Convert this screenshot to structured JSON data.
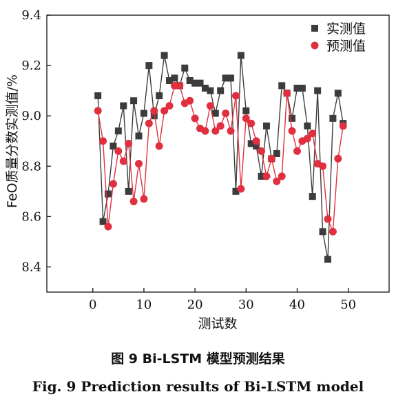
{
  "chart_data": {
    "type": "line",
    "xlabel": "测试数",
    "ylabel": "FeO质量分数实测值/%",
    "xlim": [
      -9,
      58
    ],
    "ylim": [
      8.3,
      9.4
    ],
    "xticks": [
      0,
      10,
      20,
      30,
      40,
      50
    ],
    "yticks": [
      8.4,
      8.6,
      8.8,
      9.0,
      9.2,
      9.4
    ],
    "ytick_labels": [
      "8.4",
      "8.6",
      "8.8",
      "9.0",
      "9.2",
      "9.4"
    ],
    "grid": false,
    "legend_position": "top-right",
    "series": [
      {
        "name": "实测值",
        "color": "#3c3c3c",
        "marker": "square",
        "x": [
          1,
          2,
          3,
          4,
          5,
          6,
          7,
          8,
          9,
          10,
          11,
          12,
          13,
          14,
          15,
          16,
          17,
          18,
          19,
          20,
          21,
          22,
          23,
          24,
          25,
          26,
          27,
          28,
          29,
          30,
          31,
          32,
          33,
          34,
          35,
          36,
          37,
          38,
          39,
          40,
          41,
          42,
          43,
          44,
          45,
          46,
          47,
          48,
          49
        ],
        "values": [
          9.08,
          8.58,
          8.69,
          8.88,
          8.94,
          9.04,
          8.7,
          9.06,
          8.92,
          9.01,
          9.2,
          9.0,
          9.08,
          9.24,
          9.14,
          9.15,
          9.12,
          9.19,
          9.14,
          9.13,
          9.13,
          9.11,
          9.1,
          9.01,
          9.1,
          9.15,
          9.15,
          8.7,
          9.24,
          9.02,
          8.89,
          8.88,
          8.76,
          8.96,
          8.83,
          8.85,
          9.12,
          9.09,
          8.99,
          9.11,
          9.11,
          8.96,
          8.68,
          9.1,
          8.54,
          8.43,
          8.99,
          9.09,
          8.97
        ]
      },
      {
        "name": "预测值",
        "color": "#e03040",
        "marker": "circle",
        "x": [
          1,
          2,
          3,
          4,
          5,
          6,
          7,
          8,
          9,
          10,
          11,
          12,
          13,
          14,
          15,
          16,
          17,
          18,
          19,
          20,
          21,
          22,
          23,
          24,
          25,
          26,
          27,
          28,
          29,
          30,
          31,
          32,
          33,
          34,
          35,
          36,
          37,
          38,
          39,
          40,
          41,
          42,
          43,
          44,
          45,
          46,
          47,
          48,
          49
        ],
        "values": [
          9.02,
          8.9,
          8.56,
          8.73,
          8.86,
          8.82,
          8.89,
          8.66,
          8.81,
          8.67,
          8.97,
          9.02,
          8.88,
          9.02,
          9.04,
          9.12,
          9.12,
          9.05,
          9.06,
          8.99,
          8.95,
          8.94,
          9.04,
          8.94,
          8.96,
          9.01,
          8.94,
          9.08,
          8.71,
          8.99,
          8.97,
          8.9,
          8.86,
          8.76,
          8.83,
          8.74,
          8.76,
          9.09,
          8.94,
          8.86,
          8.9,
          8.91,
          8.93,
          8.81,
          8.8,
          8.59,
          8.54,
          8.83,
          8.96
        ]
      }
    ]
  },
  "caption": {
    "cn": "图 9   Bi-LSTM 模型预测结果",
    "en": "Fig. 9    Prediction results of Bi-LSTM model"
  }
}
